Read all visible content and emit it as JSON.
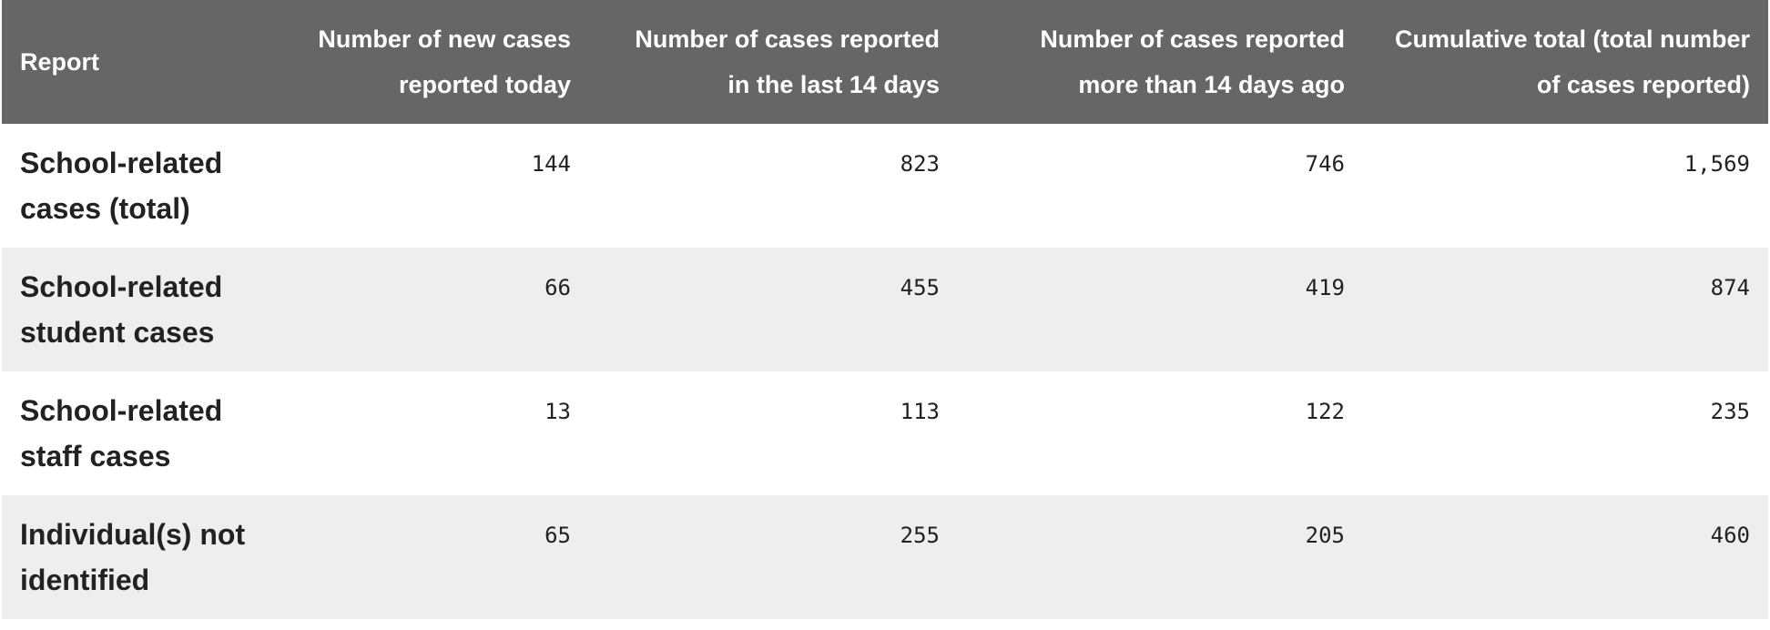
{
  "table": {
    "headers": [
      "Report",
      "Number of new cases reported today",
      "Number of cases reported in the last 14 days",
      "Number of cases reported more than 14 days ago",
      "Cumulative total (total number of cases reported)"
    ],
    "rows": [
      {
        "label": "School-related cases (total)",
        "values": [
          "144",
          "823",
          "746",
          "1,569"
        ]
      },
      {
        "label": "School-related student cases",
        "values": [
          "66",
          "455",
          "419",
          "874"
        ]
      },
      {
        "label": "School-related staff cases",
        "values": [
          "13",
          "113",
          "122",
          "235"
        ]
      },
      {
        "label": "Individual(s) not identified",
        "values": [
          "65",
          "255",
          "205",
          "460"
        ]
      }
    ]
  },
  "colors": {
    "header_bg": "#666666",
    "header_text": "#ffffff",
    "row_alt_bg": "#eeeeee",
    "text": "#222222"
  }
}
